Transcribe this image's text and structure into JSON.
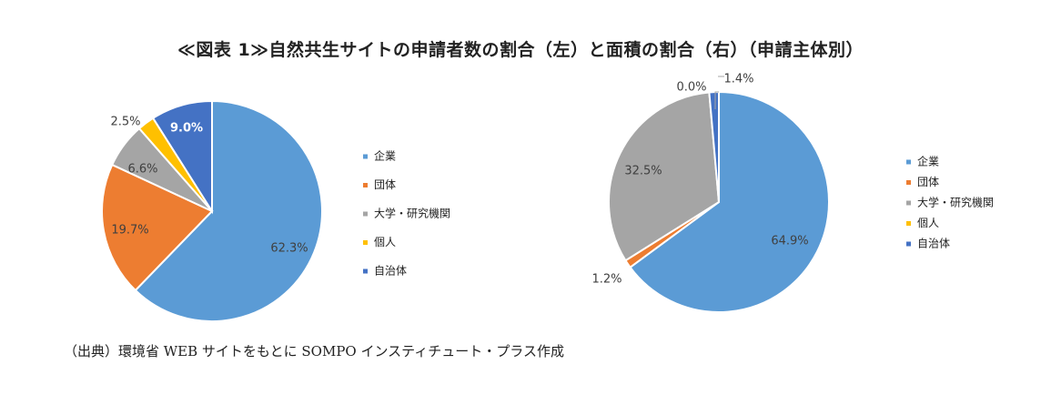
{
  "title": "≪図表 1≫自然共生サイトの申請者数の割合（左）と面積の割合（右）（申請主体別）",
  "source": "（出典）環境省 WEB サイトをもとに SOMPO インスティチュート・プラス作成",
  "colors": {
    "企業": "#5B9BD5",
    "団体": "#ED7D31",
    "大学・研究機関": "#A5A5A5",
    "個人": "#FFC000",
    "自治体": "#4472C4"
  },
  "chart_data": [
    {
      "type": "pie",
      "title": "",
      "legend_position": "right",
      "categories": [
        "企業",
        "団体",
        "大学・研究機関",
        "個人",
        "自治体"
      ],
      "values": [
        62.3,
        19.7,
        6.6,
        2.5,
        9.0
      ],
      "labels": [
        "62.3%",
        "19.7%",
        "6.6%",
        "2.5%",
        "9.0%"
      ]
    },
    {
      "type": "pie",
      "title": "",
      "legend_position": "right",
      "categories": [
        "企業",
        "団体",
        "大学・研究機関",
        "個人",
        "自治体"
      ],
      "values": [
        64.9,
        1.2,
        32.5,
        0.0,
        1.4
      ],
      "labels": [
        "64.9%",
        "1.2%",
        "32.5%",
        "0.0%",
        "1.4%"
      ]
    }
  ]
}
